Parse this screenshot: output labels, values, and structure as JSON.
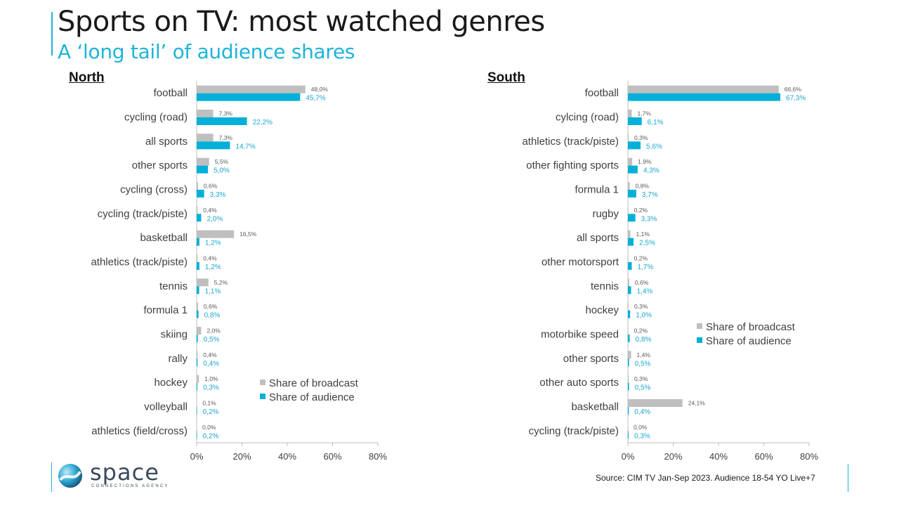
{
  "header": {
    "title": "Sports on TV: most watched genres",
    "subtitle": "A ‘long tail’ of audience shares"
  },
  "footer": {
    "source": "Source: CIM TV Jan-Sep 2023. Audience 18-54 YO Live+7",
    "logo_word": "space",
    "logo_tagline": "CONNECTIONS AGENCY"
  },
  "colors": {
    "broadcast": "#bfbfbf",
    "audience": "#00b0d8",
    "accent": "#1eb4d8"
  },
  "chart_data": [
    {
      "type": "bar",
      "orientation": "horizontal",
      "title": "North",
      "categories": [
        "football",
        "cycling (road)",
        "all sports",
        "other sports",
        "cycling (cross)",
        "cycling (track/piste)",
        "basketball",
        "athletics (track/piste)",
        "tennis",
        "formula 1",
        "skiing",
        "rally",
        "hockey",
        "volleyball",
        "athletics (field/cross)"
      ],
      "series": [
        {
          "name": "Share of broadcast",
          "values": [
            48.0,
            7.3,
            7.3,
            5.5,
            0.6,
            0.4,
            16.5,
            0.4,
            5.2,
            0.6,
            2.0,
            0.4,
            1.0,
            0.1,
            0.0
          ],
          "labels": [
            "48,0%",
            "7,3%",
            "7,3%",
            "5,5%",
            "0,6%",
            "0,4%",
            "16,5%",
            "0,4%",
            "5,2%",
            "0,6%",
            "2,0%",
            "0,4%",
            "1,0%",
            "0,1%",
            "0,0%"
          ]
        },
        {
          "name": "Share of audience",
          "values": [
            45.7,
            22.2,
            14.7,
            5.0,
            3.3,
            2.0,
            1.2,
            1.2,
            1.1,
            0.8,
            0.5,
            0.4,
            0.3,
            0.2,
            0.2
          ],
          "labels": [
            "45,7%",
            "22,2%",
            "14,7%",
            "5,0%",
            "3,3%",
            "2,0%",
            "1,2%",
            "1,2%",
            "1,1%",
            "0,8%",
            "0,5%",
            "0,4%",
            "0,3%",
            "0,2%",
            "0,2%"
          ]
        }
      ],
      "xlim": [
        0,
        80
      ],
      "xticks": [
        "0%",
        "20%",
        "40%",
        "60%",
        "80%"
      ],
      "legend": "bottom-right"
    },
    {
      "type": "bar",
      "orientation": "horizontal",
      "title": "South",
      "categories": [
        "football",
        "cylcing (road)",
        "athletics (track/piste)",
        "other fighting sports",
        "formula 1",
        "rugby",
        "all sports",
        "other motorsport",
        "tennis",
        "hockey",
        "motorbike  speed",
        "other sports",
        "other auto sports",
        "basketball",
        "cycling (track/piste)"
      ],
      "series": [
        {
          "name": "Share of broadcast",
          "values": [
            66.6,
            1.7,
            0.3,
            1.9,
            0.8,
            0.2,
            1.1,
            0.2,
            0.6,
            0.3,
            0.2,
            1.4,
            0.3,
            24.1,
            0.0
          ],
          "labels": [
            "66,6%",
            "1,7%",
            "0,3%",
            "1,9%",
            "0,8%",
            "0,2%",
            "1,1%",
            "0,2%",
            "0,6%",
            "0,3%",
            "0,2%",
            "1,4%",
            "0,3%",
            "24,1%",
            "0,0%"
          ]
        },
        {
          "name": "Share of audience",
          "values": [
            67.3,
            6.1,
            5.6,
            4.3,
            3.7,
            3.3,
            2.5,
            1.7,
            1.4,
            1.0,
            0.8,
            0.5,
            0.5,
            0.4,
            0.3
          ],
          "labels": [
            "67,3%",
            "6,1%",
            "5,6%",
            "4,3%",
            "3,7%",
            "3,3%",
            "2,5%",
            "1,7%",
            "1,4%",
            "1,0%",
            "0,8%",
            "0,5%",
            "0,5%",
            "0,4%",
            "0,3%"
          ]
        }
      ],
      "xlim": [
        0,
        80
      ],
      "xticks": [
        "0%",
        "20%",
        "40%",
        "60%",
        "80%"
      ],
      "legend": "middle-right"
    }
  ]
}
